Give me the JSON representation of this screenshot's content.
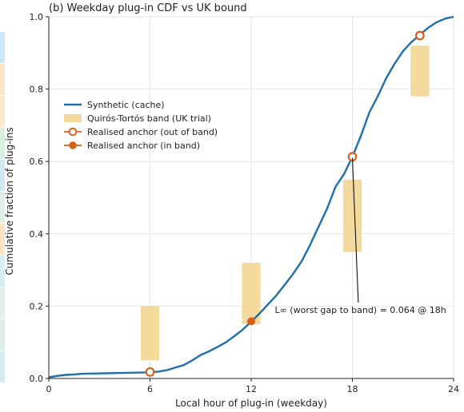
{
  "chart_data": {
    "type": "line",
    "title": "(b) Weekday plug-in CDF vs UK bound",
    "xlabel": "Local hour of plug-in (weekday)",
    "ylabel": "Cumulative fraction of plug-ins",
    "xlim": [
      0,
      24
    ],
    "ylim": [
      0,
      1.0
    ],
    "xticks": [
      "0",
      "6",
      "12",
      "18",
      "24"
    ],
    "yticks": [
      "0.0",
      "0.2",
      "0.4",
      "0.6",
      "0.8",
      "1.0"
    ],
    "grid": true,
    "legend_position": "upper-left",
    "legend": [
      {
        "label": "Synthetic (cache)",
        "kind": "line",
        "color": "#1f6fa8"
      },
      {
        "label": "Quirós-Tortós band (UK trial)",
        "kind": "patch",
        "color": "#f2d38c"
      },
      {
        "label": "Realised anchor (out of band)",
        "kind": "hollow-marker",
        "color": "#d4601a"
      },
      {
        "label": "Realised anchor (in band)",
        "kind": "filled-marker",
        "color": "#d4601a"
      }
    ],
    "series": [
      {
        "name": "Synthetic (cache)",
        "color": "#1f6fa8",
        "x": [
          0,
          0.5,
          1,
          1.5,
          2,
          3,
          4,
          5,
          6,
          6.5,
          7,
          7.5,
          8,
          8.5,
          9,
          9.5,
          10,
          10.5,
          11,
          11.5,
          12,
          12.5,
          13,
          13.5,
          14,
          14.5,
          15,
          15.5,
          16,
          16.5,
          17,
          17.5,
          18,
          18.5,
          19,
          19.5,
          20,
          20.5,
          21,
          21.5,
          22,
          22.5,
          23,
          23.5,
          24
        ],
        "y": [
          0.003,
          0.007,
          0.01,
          0.011,
          0.013,
          0.014,
          0.015,
          0.016,
          0.017,
          0.019,
          0.023,
          0.03,
          0.037,
          0.05,
          0.065,
          0.075,
          0.087,
          0.1,
          0.117,
          0.135,
          0.157,
          0.18,
          0.205,
          0.23,
          0.26,
          0.29,
          0.325,
          0.37,
          0.42,
          0.47,
          0.53,
          0.565,
          0.613,
          0.67,
          0.735,
          0.78,
          0.83,
          0.87,
          0.905,
          0.93,
          0.95,
          0.97,
          0.985,
          0.995,
          1.0
        ]
      }
    ],
    "bands": [
      {
        "hour": 6,
        "low": 0.05,
        "high": 0.2
      },
      {
        "hour": 12,
        "low": 0.15,
        "high": 0.32
      },
      {
        "hour": 18,
        "low": 0.35,
        "high": 0.55
      },
      {
        "hour": 22,
        "low": 0.78,
        "high": 0.92
      }
    ],
    "anchors": [
      {
        "hour": 6,
        "value": 0.018,
        "status": "out of band"
      },
      {
        "hour": 12,
        "value": 0.158,
        "status": "in band"
      },
      {
        "hour": 18,
        "value": 0.613,
        "status": "out of band"
      },
      {
        "hour": 22,
        "value": 0.948,
        "status": "out of band"
      }
    ],
    "annotation": {
      "text": "L∞ (worst gap to band) = 0.064 @ 18h",
      "point_hour": 18,
      "point_value": 0.61,
      "text_hour": 13.4,
      "text_value": 0.19
    }
  },
  "colors": {
    "line": "#1f6fa8",
    "band": "#f2d38c",
    "anchor": "#d4601a",
    "grid": "#e6e6e6",
    "left_strip": [
      "#cde9f6",
      "#fbe7c6",
      "#fde9cf",
      "#d9efe0",
      "#cfe8f2",
      "#dff0e4",
      "#fbe4c4",
      "#d6eef3",
      "#e2f1e6",
      "#dcefe4",
      "#d7eaf4"
    ]
  }
}
